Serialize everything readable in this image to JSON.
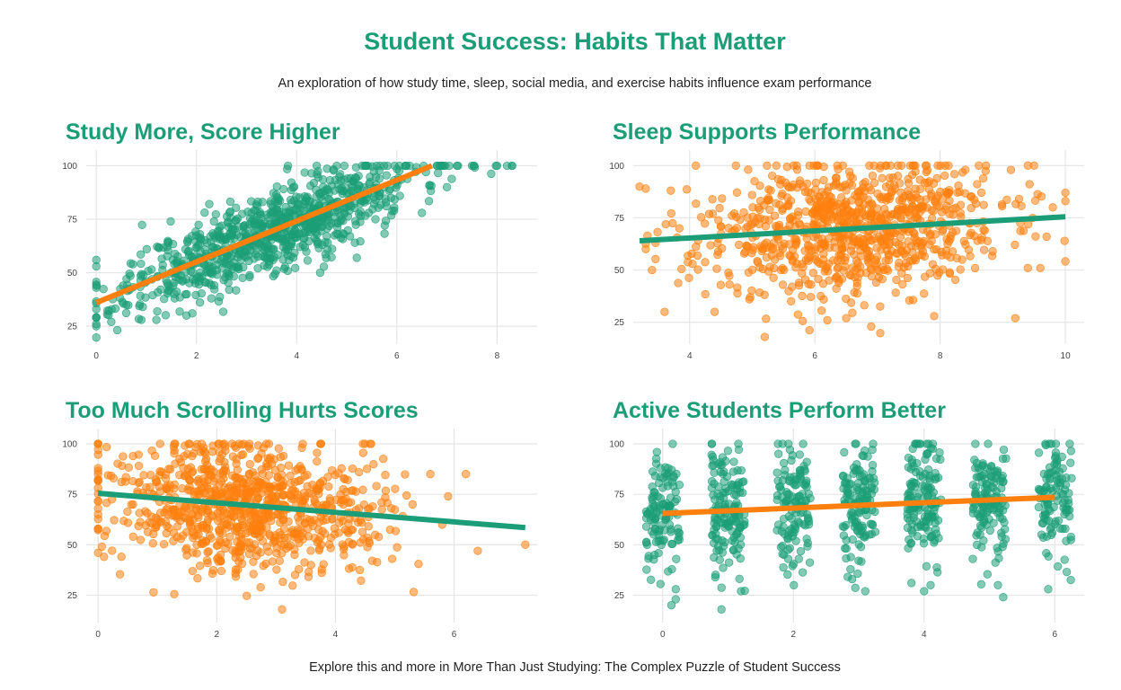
{
  "header": {
    "title": "Student Success: Habits That Matter",
    "subtitle": "An exploration of how study time, sleep, social media, and exercise habits influence exam performance"
  },
  "footer": {
    "caption": "Explore this and more in More Than Just Studying: The Complex Puzzle of Student Success"
  },
  "colors": {
    "green": "#1b9e77",
    "orange": "#ff7f0e",
    "grid": "#e5e5e5"
  },
  "chart_data": [
    {
      "type": "scatter",
      "title": "Study More, Score Higher",
      "xlabel": "",
      "ylabel": "",
      "xlim": [
        -0.2,
        8.8
      ],
      "ylim": [
        20,
        104
      ],
      "xticks": [
        0,
        2,
        4,
        6,
        8
      ],
      "yticks": [
        25,
        50,
        75,
        100
      ],
      "grid": true,
      "point_color": "#1b9e77",
      "trend_color": "#ff7f0e",
      "trend": [
        [
          0,
          36
        ],
        [
          6.7,
          100
        ]
      ],
      "cloud": {
        "seed": 11,
        "n": 900,
        "x_mean": 3.5,
        "x_sd": 1.45,
        "x_min": 0,
        "x_max": 8.3,
        "intercept": 36,
        "slope": 9.6,
        "noise_sd": 9.5,
        "y_min": 18,
        "y_max": 100
      },
      "points": [
        [
          0,
          26
        ],
        [
          0,
          29
        ],
        [
          0,
          33
        ],
        [
          0,
          43
        ],
        [
          0,
          53
        ],
        [
          0,
          56
        ],
        [
          0.3,
          27
        ],
        [
          0.6,
          35
        ],
        [
          0.9,
          28
        ],
        [
          1.2,
          28
        ],
        [
          1.8,
          30
        ],
        [
          2.3,
          38
        ],
        [
          5.2,
          57
        ],
        [
          6.5,
          78
        ],
        [
          7.0,
          90
        ],
        [
          8.0,
          100
        ],
        [
          8.2,
          100
        ],
        [
          8.3,
          100
        ],
        [
          7.5,
          100
        ],
        [
          7.2,
          100
        ],
        [
          4.8,
          100
        ],
        [
          4.4,
          100
        ]
      ]
    },
    {
      "type": "scatter",
      "title": "Sleep Supports Performance",
      "xlabel": "",
      "ylabel": "",
      "xlim": [
        3.1,
        10.3
      ],
      "ylim": [
        18,
        104
      ],
      "xticks": [
        4,
        6,
        8,
        10
      ],
      "yticks": [
        25,
        50,
        75,
        100
      ],
      "grid": true,
      "point_color": "#ff7f0e",
      "trend_color": "#1b9e77",
      "trend": [
        [
          3.2,
          64
        ],
        [
          10,
          75.5
        ]
      ],
      "cloud": {
        "seed": 23,
        "n": 900,
        "x_mean": 6.5,
        "x_sd": 1.2,
        "x_min": 3.3,
        "x_max": 10,
        "intercept": 58.6,
        "slope": 1.7,
        "noise_sd": 16,
        "y_min": 18,
        "y_max": 100
      },
      "points": [
        [
          3.2,
          90
        ],
        [
          3.7,
          88
        ],
        [
          3.4,
          50
        ],
        [
          3.6,
          30
        ],
        [
          4.1,
          100
        ],
        [
          4.4,
          30
        ],
        [
          5.2,
          18
        ],
        [
          6.2,
          26
        ],
        [
          6.5,
          27
        ],
        [
          6.9,
          23
        ],
        [
          9.2,
          27
        ],
        [
          9.5,
          100
        ],
        [
          9.4,
          100
        ],
        [
          10,
          87
        ],
        [
          10,
          83
        ],
        [
          9.8,
          80
        ],
        [
          9.7,
          66
        ],
        [
          9.6,
          51
        ],
        [
          9.4,
          51
        ]
      ]
    },
    {
      "type": "scatter",
      "title": "Too Much Scrolling Hurts Scores",
      "xlabel": "",
      "ylabel": "",
      "xlim": [
        -0.2,
        7.4
      ],
      "ylim": [
        15,
        104
      ],
      "xticks": [
        0,
        2,
        4,
        6
      ],
      "yticks": [
        25,
        50,
        75,
        100
      ],
      "grid": true,
      "point_color": "#ff7f0e",
      "trend_color": "#1b9e77",
      "trend": [
        [
          0,
          75.5
        ],
        [
          7.2,
          58.5
        ]
      ],
      "cloud": {
        "seed": 37,
        "n": 900,
        "x_mean": 2.5,
        "x_sd": 1.1,
        "x_min": 0,
        "x_max": 5.4,
        "intercept": 75.5,
        "slope": -2.36,
        "noise_sd": 16,
        "y_min": 18,
        "y_max": 100
      },
      "points": [
        [
          0,
          100
        ],
        [
          0,
          97
        ],
        [
          0,
          88
        ],
        [
          0,
          82
        ],
        [
          0,
          65
        ],
        [
          0,
          58
        ],
        [
          0,
          46
        ],
        [
          0.1,
          44
        ],
        [
          3.1,
          18
        ],
        [
          4.5,
          100
        ],
        [
          4.6,
          100
        ],
        [
          5.6,
          85
        ],
        [
          5.9,
          74
        ],
        [
          6.2,
          85
        ],
        [
          6.4,
          47
        ],
        [
          7.2,
          50
        ],
        [
          5.8,
          60
        ],
        [
          5.3,
          70
        ]
      ]
    },
    {
      "type": "scatter",
      "title": "Active Students Perform Better",
      "xlabel": "",
      "ylabel": "",
      "xlim": [
        -0.45,
        6.45
      ],
      "ylim": [
        15,
        104
      ],
      "xticks": [
        0,
        2,
        4,
        6
      ],
      "yticks": [
        25,
        50,
        75,
        100
      ],
      "grid": true,
      "point_color": "#1b9e77",
      "trend_color": "#ff7f0e",
      "trend": [
        [
          0,
          65.5
        ],
        [
          6,
          73.5
        ]
      ],
      "cloud": {
        "seed": 53,
        "n": 900,
        "categories": [
          0,
          1,
          2,
          3,
          4,
          5,
          6
        ],
        "jitter": 0.26,
        "intercept": 65.5,
        "slope": 1.33,
        "noise_sd": 16,
        "y_min": 18,
        "y_max": 100
      },
      "points": [
        [
          0.2,
          28
        ],
        [
          0.2,
          23
        ],
        [
          0.9,
          18
        ],
        [
          5.9,
          28
        ],
        [
          3.1,
          27
        ],
        [
          2.9,
          33
        ],
        [
          4.0,
          27
        ],
        [
          4.1,
          30
        ],
        [
          1.2,
          27
        ]
      ]
    }
  ]
}
